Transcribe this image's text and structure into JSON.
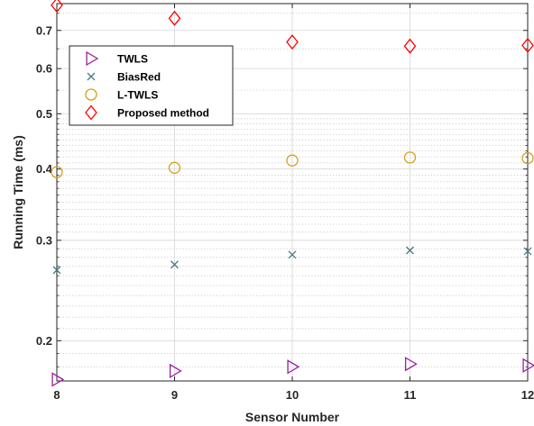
{
  "chart_data": {
    "type": "scatter",
    "xlabel": "Sensor Number",
    "ylabel": "Running Time (ms)",
    "x": [
      8,
      9,
      10,
      11,
      12
    ],
    "xlim": [
      8,
      12
    ],
    "ylim": [
      0.17,
      0.78
    ],
    "yscale": "log",
    "xticks": [
      "8",
      "9",
      "10",
      "11",
      "12"
    ],
    "yticks": [
      {
        "value": 0.2,
        "label": "0.2"
      },
      {
        "value": 0.3,
        "label": "0.3"
      },
      {
        "value": 0.4,
        "label": "0.4"
      },
      {
        "value": 0.5,
        "label": "0.5"
      },
      {
        "value": 0.6,
        "label": "0.6"
      },
      {
        "value": 0.7,
        "label": "0.7"
      }
    ],
    "minor_yticks": [
      0.18,
      0.19,
      0.21,
      0.22,
      0.23,
      0.24,
      0.25,
      0.26,
      0.27,
      0.28,
      0.29,
      0.31,
      0.32,
      0.33,
      0.34,
      0.35,
      0.36,
      0.37,
      0.38,
      0.39,
      0.41,
      0.42,
      0.43,
      0.44,
      0.45,
      0.46,
      0.47,
      0.48,
      0.49,
      0.55,
      0.65,
      0.75
    ],
    "grid": true,
    "legend_position": "top-left",
    "series": [
      {
        "name": "TWLS",
        "marker": "triangle-right",
        "color": "#9b1fa0",
        "values": [
          0.171,
          0.177,
          0.18,
          0.182,
          0.181
        ]
      },
      {
        "name": "BiasRed",
        "marker": "x",
        "color": "#4a7a86",
        "values": [
          0.266,
          0.272,
          0.283,
          0.288,
          0.287
        ]
      },
      {
        "name": "L-TWLS",
        "marker": "circle",
        "color": "#d4a017",
        "values": [
          0.395,
          0.402,
          0.414,
          0.419,
          0.418
        ]
      },
      {
        "name": "Proposed method",
        "marker": "diamond",
        "color": "#ff0000",
        "values": [
          0.775,
          0.735,
          0.668,
          0.657,
          0.659
        ]
      }
    ]
  }
}
